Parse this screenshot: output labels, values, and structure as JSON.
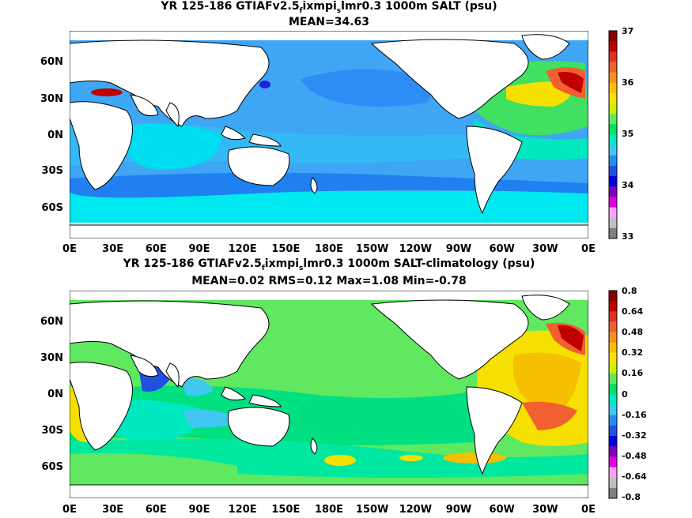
{
  "panel1": {
    "title_pre": "YR 125-186 GTIAFv2.5",
    "title_sub1": "f",
    "title_mid": "ixmpi",
    "title_sub2": "s",
    "title_post": "lmr0.3 1000m SALT (psu)",
    "stats": "MEAN=34.63",
    "lat_labels": [
      "60N",
      "30N",
      "0N",
      "30S",
      "60S"
    ],
    "lon_labels": [
      "0E",
      "30E",
      "60E",
      "90E",
      "120E",
      "150E",
      "180E",
      "150W",
      "120W",
      "90W",
      "60W",
      "30W",
      "0E"
    ],
    "colorbar_labels": [
      "37",
      "36",
      "35",
      "34",
      "33"
    ],
    "colorbar_colors": [
      "#8b0000",
      "#c00000",
      "#e03020",
      "#f06030",
      "#f59020",
      "#f5c000",
      "#f5e000",
      "#c8f000",
      "#60e860",
      "#00e060",
      "#00e8c0",
      "#40c8f0",
      "#2090f0",
      "#2050e0",
      "#0000e0",
      "#8000c0",
      "#e000e0",
      "#ffa0ff",
      "#c0c0c0",
      "#808080"
    ]
  },
  "panel2": {
    "title_pre": "YR 125-186 GTIAFv2.5",
    "title_sub1": "f",
    "title_mid": "ixmpi",
    "title_sub2": "s",
    "title_post": "lmr0.3 1000m SALT-climatology (psu)",
    "stats": "MEAN=0.02   RMS=0.12   Max=1.08   Min=-0.78",
    "lat_labels": [
      "60N",
      "30N",
      "0N",
      "30S",
      "60S"
    ],
    "lon_labels": [
      "0E",
      "30E",
      "60E",
      "90E",
      "120E",
      "150E",
      "180E",
      "150W",
      "120W",
      "90W",
      "60W",
      "30W",
      "0E"
    ],
    "colorbar_labels": [
      "0.8",
      "0.64",
      "0.48",
      "0.32",
      "0.16",
      "0",
      "-0.16",
      "-0.32",
      "-0.48",
      "-0.64",
      "-0.8"
    ],
    "colorbar_colors": [
      "#8b0000",
      "#c00000",
      "#e03020",
      "#f06030",
      "#f59020",
      "#f5c000",
      "#f5e000",
      "#c8f000",
      "#60e860",
      "#00e060",
      "#00e8c0",
      "#40c8f0",
      "#2090f0",
      "#2050e0",
      "#0000e0",
      "#8000c0",
      "#e000e0",
      "#ffa0ff",
      "#c0c0c0",
      "#808080"
    ]
  }
}
